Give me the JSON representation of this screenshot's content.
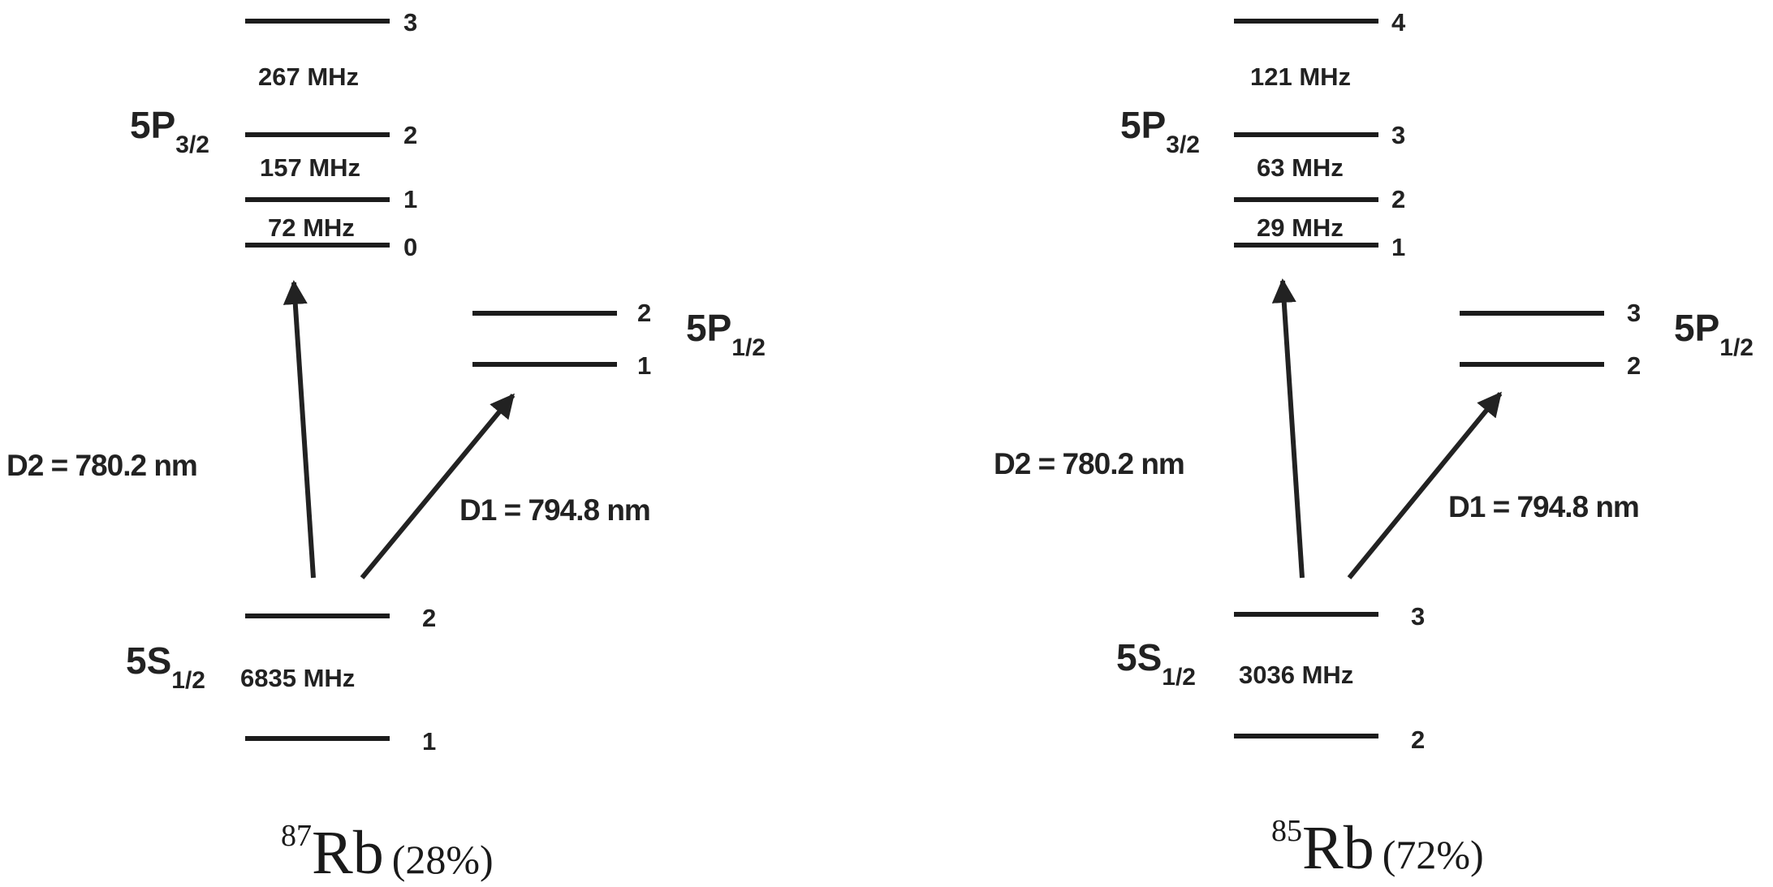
{
  "colors": {
    "ink": "#222222",
    "background": "#ffffff"
  },
  "diagrams": [
    {
      "isotope": {
        "mass": "87",
        "element": "Rb",
        "abundance": "(28%)"
      },
      "upper": {
        "state": "5P",
        "sub": "3/2",
        "F": [
          "3",
          "2",
          "1",
          "0"
        ],
        "splittings": [
          "267 MHz",
          "157 MHz",
          "72 MHz"
        ]
      },
      "mid": {
        "state": "5P",
        "sub": "1/2",
        "F": [
          "2",
          "1"
        ]
      },
      "ground": {
        "state": "5S",
        "sub": "1/2",
        "F": [
          "2",
          "1"
        ],
        "splitting": "6835 MHz"
      },
      "d2": "D2 = 780.2 nm",
      "d1": "D1 = 794.8 nm"
    },
    {
      "isotope": {
        "mass": "85",
        "element": "Rb",
        "abundance": "(72%)"
      },
      "upper": {
        "state": "5P",
        "sub": "3/2",
        "F": [
          "4",
          "3",
          "2",
          "1"
        ],
        "splittings": [
          "121 MHz",
          "63 MHz",
          "29 MHz"
        ]
      },
      "mid": {
        "state": "5P",
        "sub": "1/2",
        "F": [
          "3",
          "2"
        ]
      },
      "ground": {
        "state": "5S",
        "sub": "1/2",
        "F": [
          "3",
          "2"
        ],
        "splitting": "3036 MHz"
      },
      "d2": "D2 = 780.2 nm",
      "d1": "D1 = 794.8 nm"
    }
  ]
}
